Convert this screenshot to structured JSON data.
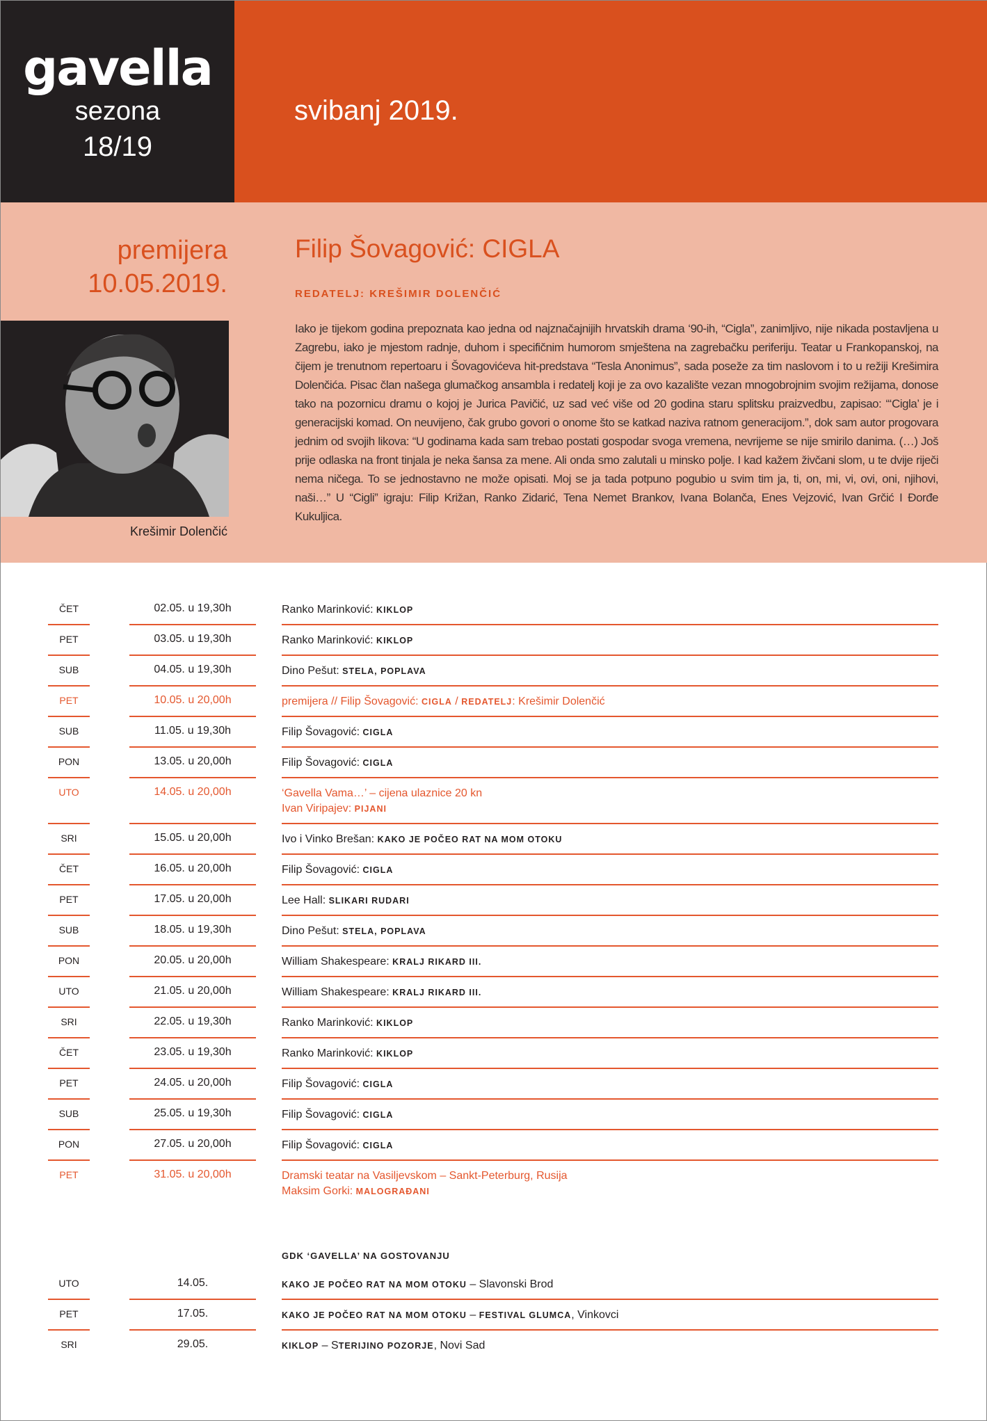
{
  "header": {
    "logo": "gavella",
    "season_label": "sezona",
    "season": "18/19",
    "month": "svibanj 2019.",
    "colors": {
      "orange": "#d9501e",
      "dark": "#231f20",
      "pink": "#f0b8a3"
    }
  },
  "premiere": {
    "label": "premijera",
    "date": "10.05.2019.",
    "title": "Filip Šovagović: CIGLA",
    "director": "REDATELJ: KREŠIMIR DOLENČIĆ",
    "photo_caption": "Krešimir Dolenčić",
    "body": "Iako je tijekom godina prepoznata kao jedna od najznačajnijih hrvatskih drama ‘90-ih, “Cigla”, zanimljivo, nije nikada postavljena u Zagrebu, iako je mjestom radnje, duhom i specifičnim humorom smještena na zagrebačku periferiju. Teatar u Frankopanskoj, na čijem je trenutnom repertoaru i Šovagovićeva hit-predstava “Tesla Anonimus”, sada poseže za tim naslovom i to u režiji Krešimira Dolenčića. Pisac član našega glumačkog ansambla i redatelj koji je za ovo kazalište vezan mnogobrojnim svojim režijama, donose tako na pozornicu dramu o kojoj je Jurica Pavičić, uz sad već više od 20 godina staru splitsku praizvedbu, zapisao: “‘Cigla’ je i generacijski komad. On neuvijeno, čak grubo govori o onome što se katkad naziva ratnom generacijom.”, dok sam autor progovara jednim od svojih likova: “U godinama kada sam trebao postati gospodar svoga vremena, nevrijeme se nije smirilo danima. (…) Još prije odlaska na front tinjala je neka šansa za mene. Ali onda smo zalutali u minsko polje. I kad kažem živčani slom, u te dvije riječi nema ničega. To se jednostavno ne može opisati. Moj se ja tada potpuno pogubio u svim tim ja, ti, on, mi, vi, ovi, oni, njihovi, naši…” U “Cigli” igraju: Filip Križan, Ranko Zidarić, Tena Nemet Brankov, Ivana Bolanča, Enes Vejzović, Ivan Grčić I Đorđe Kukuljica."
  },
  "schedule": [
    {
      "day": "ČET",
      "time": "02.05. u 19,30h",
      "lines": [
        [
          {
            "t": "Ranko Marinković: "
          },
          {
            "t": "KIKLOP",
            "sc": true
          }
        ]
      ]
    },
    {
      "day": "PET",
      "time": "03.05. u 19,30h",
      "lines": [
        [
          {
            "t": "Ranko Marinković: "
          },
          {
            "t": "KIKLOP",
            "sc": true
          }
        ]
      ]
    },
    {
      "day": "SUB",
      "time": "04.05. u 19,30h",
      "lines": [
        [
          {
            "t": "Dino Pešut: "
          },
          {
            "t": "STELA, POPLAVA",
            "sc": true
          }
        ]
      ]
    },
    {
      "day": "PET",
      "time": "10.05. u 20,00h",
      "highlight": true,
      "lines": [
        [
          {
            "t": "premijera // Filip Šovagović: "
          },
          {
            "t": "CIGLA",
            "sc": true
          },
          {
            "t": " / "
          },
          {
            "t": "REDATELJ",
            "sc": true
          },
          {
            "t": ": Krešimir Dolenčić"
          }
        ]
      ]
    },
    {
      "day": "SUB",
      "time": "11.05. u 19,30h",
      "lines": [
        [
          {
            "t": "Filip Šovagović: "
          },
          {
            "t": "CIGLA",
            "sc": true
          }
        ]
      ]
    },
    {
      "day": "PON",
      "time": "13.05. u 20,00h",
      "lines": [
        [
          {
            "t": "Filip Šovagović: "
          },
          {
            "t": "CIGLA",
            "sc": true
          }
        ]
      ]
    },
    {
      "day": "UTO",
      "time": "14.05. u 20,00h",
      "highlight": true,
      "lines": [
        [
          {
            "t": "‘Gavella Vama…’ – cijena ulaznice 20 kn"
          }
        ],
        [
          {
            "t": "Ivan Viripajev: "
          },
          {
            "t": "PIJANI",
            "sc": true
          }
        ]
      ]
    },
    {
      "day": "SRI",
      "time": "15.05. u 20,00h",
      "lines": [
        [
          {
            "t": "Ivo i Vinko Brešan: "
          },
          {
            "t": "KAKO JE POČEO RAT NA MOM OTOKU",
            "sc": true
          }
        ]
      ]
    },
    {
      "day": "ČET",
      "time": "16.05. u 20,00h",
      "lines": [
        [
          {
            "t": "Filip Šovagović: "
          },
          {
            "t": "CIGLA",
            "sc": true
          }
        ]
      ]
    },
    {
      "day": "PET",
      "time": "17.05. u 20,00h",
      "lines": [
        [
          {
            "t": "Lee Hall: "
          },
          {
            "t": "SLIKARI RUDARI",
            "sc": true
          }
        ]
      ]
    },
    {
      "day": "SUB",
      "time": "18.05. u 19,30h",
      "lines": [
        [
          {
            "t": "Dino Pešut: "
          },
          {
            "t": "STELA, POPLAVA",
            "sc": true
          }
        ]
      ]
    },
    {
      "day": "PON",
      "time": "20.05. u 20,00h",
      "lines": [
        [
          {
            "t": "William Shakespeare: "
          },
          {
            "t": "KRALJ RIKARD III.",
            "sc": true
          }
        ]
      ]
    },
    {
      "day": "UTO",
      "time": "21.05. u 20,00h",
      "lines": [
        [
          {
            "t": "William Shakespeare: "
          },
          {
            "t": "KRALJ RIKARD III.",
            "sc": true
          }
        ]
      ]
    },
    {
      "day": "SRI",
      "time": "22.05. u 19,30h",
      "lines": [
        [
          {
            "t": "Ranko Marinković: "
          },
          {
            "t": "KIKLOP",
            "sc": true
          }
        ]
      ]
    },
    {
      "day": "ČET",
      "time": "23.05. u 19,30h",
      "lines": [
        [
          {
            "t": "Ranko Marinković: "
          },
          {
            "t": "KIKLOP",
            "sc": true
          }
        ]
      ]
    },
    {
      "day": "PET",
      "time": "24.05. u 20,00h",
      "lines": [
        [
          {
            "t": "Filip Šovagović: "
          },
          {
            "t": "CIGLA",
            "sc": true
          }
        ]
      ]
    },
    {
      "day": "SUB",
      "time": "25.05. u 19,30h",
      "lines": [
        [
          {
            "t": "Filip Šovagović: "
          },
          {
            "t": "CIGLA",
            "sc": true
          }
        ]
      ]
    },
    {
      "day": "PON",
      "time": "27.05. u 20,00h",
      "lines": [
        [
          {
            "t": "Filip Šovagović: "
          },
          {
            "t": "CIGLA",
            "sc": true
          }
        ]
      ]
    },
    {
      "day": "PET",
      "time": "31.05. u 20,00h",
      "highlight": true,
      "lines": [
        [
          {
            "t": "Dramski teatar na Vasiljevskom – Sankt-Peterburg, Rusija"
          }
        ],
        [
          {
            "t": "Maksim Gorki: "
          },
          {
            "t": "MALOGRAĐANI",
            "sc": true
          }
        ]
      ]
    }
  ],
  "touring": {
    "heading": "GDK ‘GAVELLA’ NA GOSTOVANJU",
    "rows": [
      {
        "day": "UTO",
        "time": "14.05.",
        "lines": [
          [
            {
              "t": "KAKO JE POČEO RAT NA MOM OTOKU",
              "sc": true
            },
            {
              "t": " – Slavonski Brod"
            }
          ]
        ]
      },
      {
        "day": "PET",
        "time": "17.05.",
        "lines": [
          [
            {
              "t": "KAKO JE POČEO RAT NA MOM OTOKU",
              "sc": true
            },
            {
              "t": " – "
            },
            {
              "t": "FESTIVAL GLUMCA",
              "sc": true
            },
            {
              "t": ", Vinkovci"
            }
          ]
        ]
      },
      {
        "day": "SRI",
        "time": "29.05.",
        "lines": [
          [
            {
              "t": "KIKLOP",
              "sc": true
            },
            {
              "t": " – S"
            },
            {
              "t": "TERIJINO POZORJE",
              "sc": true
            },
            {
              "t": ", Novi Sad"
            }
          ]
        ]
      }
    ]
  }
}
